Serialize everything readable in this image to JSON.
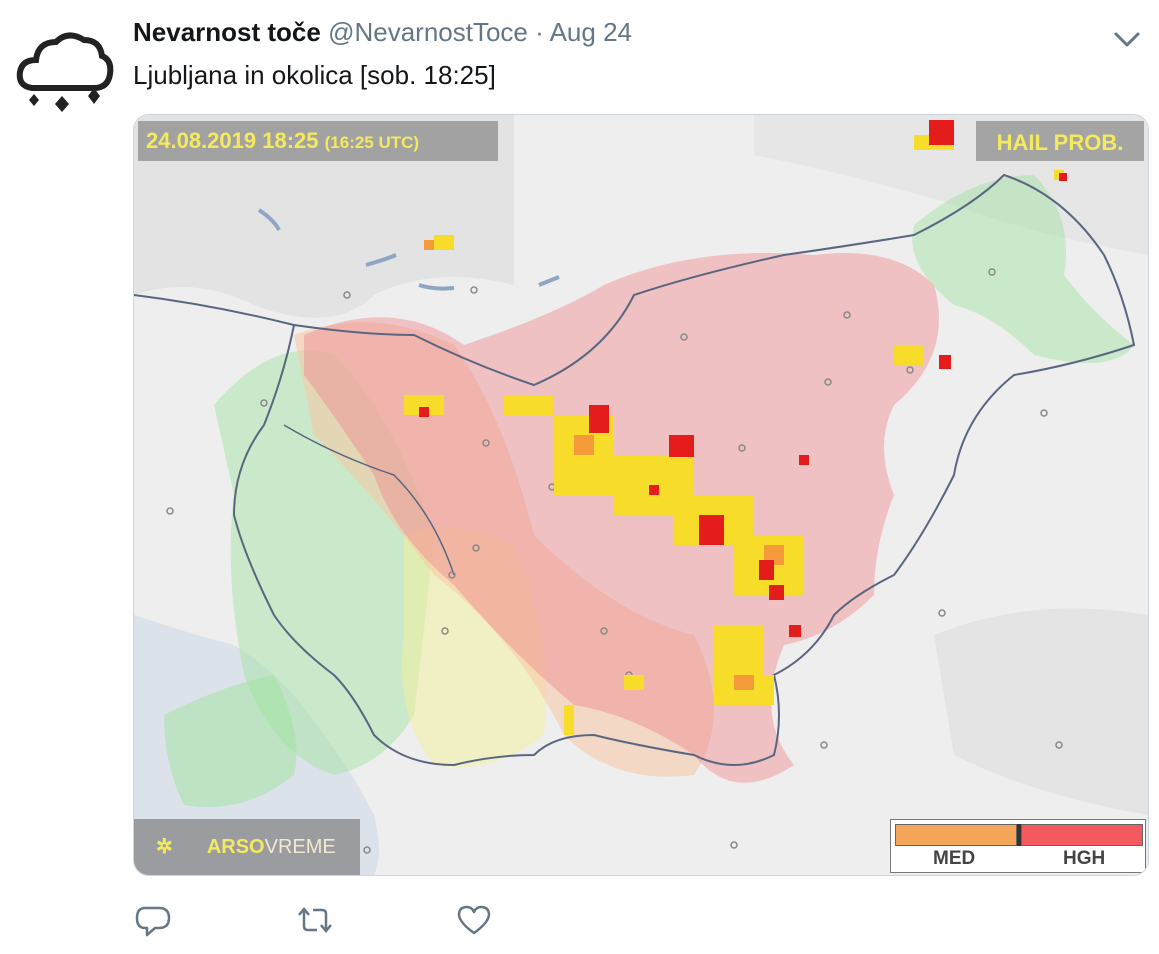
{
  "tweet": {
    "author_name": "Nevarnost toče",
    "handle": "@NevarnostToce",
    "separator": "·",
    "date": "Aug 24",
    "text": "Ljubljana in okolica [sob. 18:25]"
  },
  "map": {
    "timestamp": "24.08.2019 18:25",
    "utc": "(16:25 UTC)",
    "product_label": "HAIL PROB.",
    "brand_arso": "ARSO",
    "brand_vreme": "VREME",
    "legend": [
      {
        "label": "MED",
        "color": "#f5a55a"
      },
      {
        "label": "HGH",
        "color": "#f25a5e"
      }
    ]
  },
  "icons": {
    "avatar": "hail-cloud-icon",
    "caret": "chevron-down-icon",
    "reply": "reply-icon",
    "retweet": "retweet-icon",
    "like": "heart-icon"
  }
}
